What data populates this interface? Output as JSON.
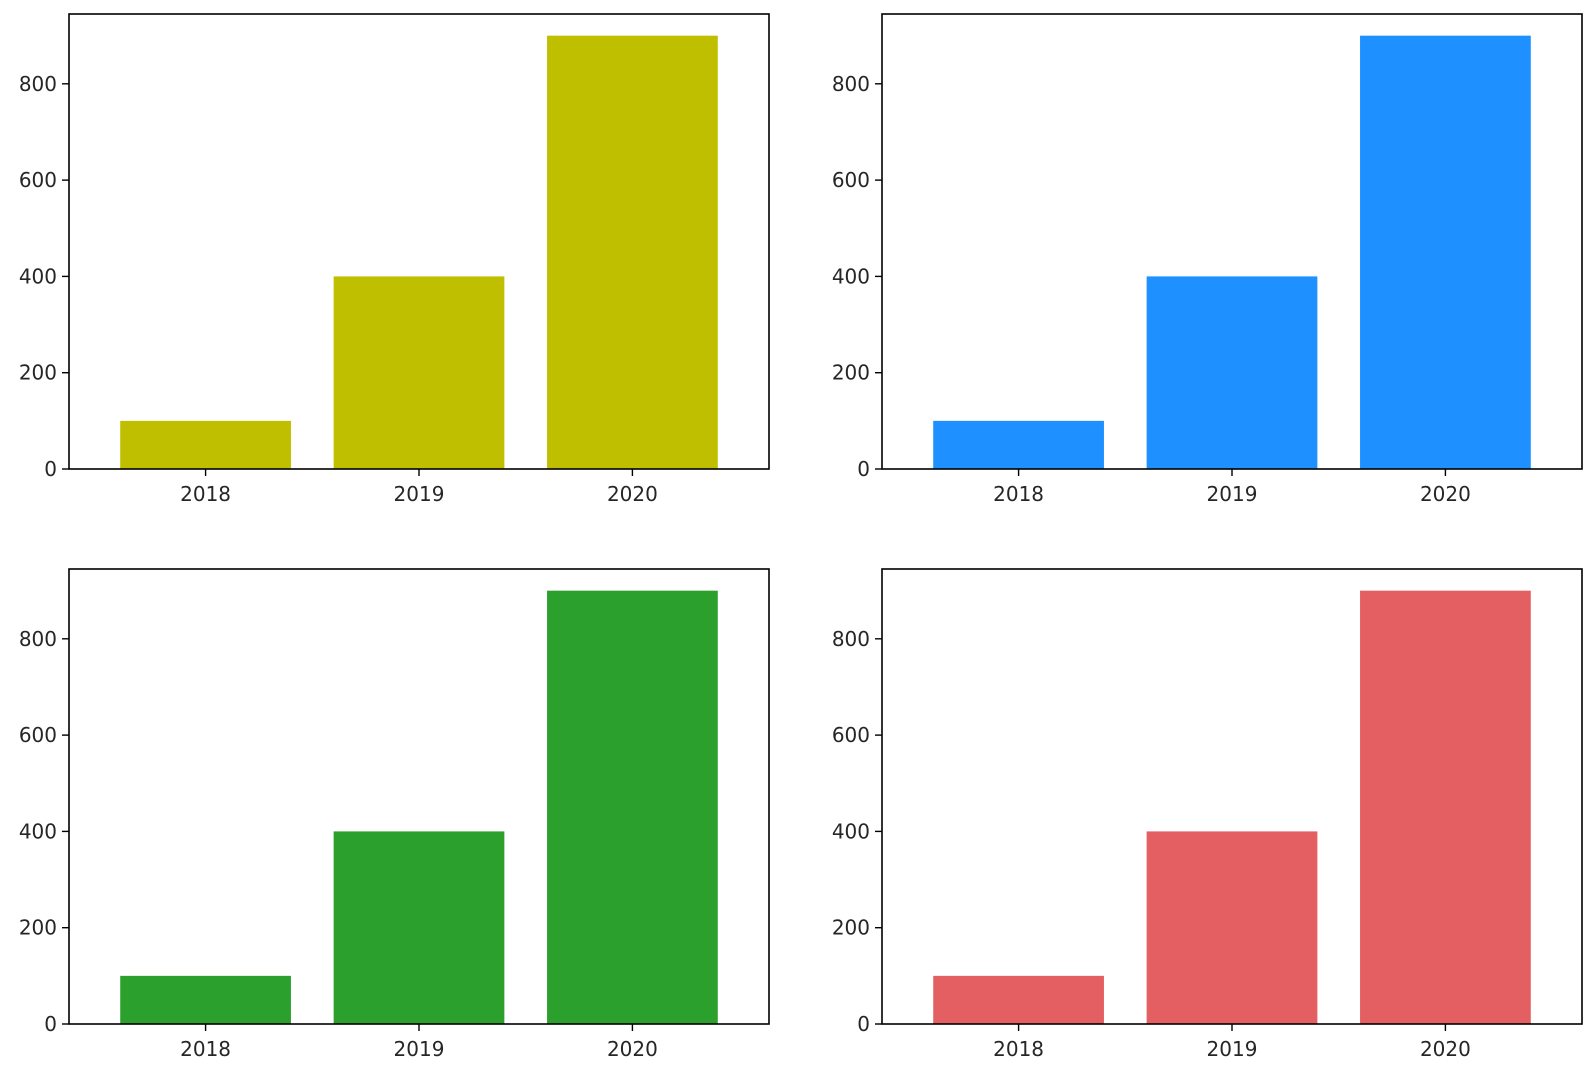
{
  "chart_data": [
    {
      "type": "bar",
      "categories": [
        "2018",
        "2019",
        "2020"
      ],
      "values": [
        100,
        400,
        900
      ],
      "color": "#bfbf00",
      "ylim": [
        0,
        945
      ],
      "yticks": [
        "0",
        "200",
        "400",
        "600",
        "800"
      ],
      "title": "",
      "xlabel": "",
      "ylabel": "",
      "grid": false
    },
    {
      "type": "bar",
      "categories": [
        "2018",
        "2019",
        "2020"
      ],
      "values": [
        100,
        400,
        900
      ],
      "color": "#1e90ff",
      "ylim": [
        0,
        945
      ],
      "yticks": [
        "0",
        "200",
        "400",
        "600",
        "800"
      ],
      "title": "",
      "xlabel": "",
      "ylabel": "",
      "grid": false
    },
    {
      "type": "bar",
      "categories": [
        "2018",
        "2019",
        "2020"
      ],
      "values": [
        100,
        400,
        900
      ],
      "color": "#2ca02c",
      "ylim": [
        0,
        945
      ],
      "yticks": [
        "0",
        "200",
        "400",
        "600",
        "800"
      ],
      "title": "",
      "xlabel": "",
      "ylabel": "",
      "grid": false
    },
    {
      "type": "bar",
      "categories": [
        "2018",
        "2019",
        "2020"
      ],
      "values": [
        100,
        400,
        900
      ],
      "color": "#e35f62",
      "ylim": [
        0,
        945
      ],
      "yticks": [
        "0",
        "200",
        "400",
        "600",
        "800"
      ],
      "title": "",
      "xlabel": "",
      "ylabel": "",
      "grid": false
    }
  ]
}
